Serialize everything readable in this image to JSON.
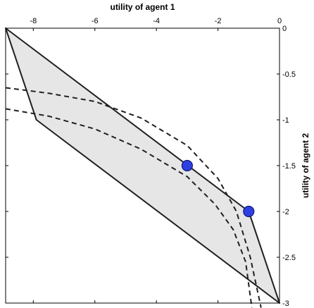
{
  "chart_data": {
    "type": "line",
    "title": "",
    "xlabel": "utility of agent 1",
    "ylabel": "utility of agent 2",
    "x_axis_position": "top",
    "y_axis_position": "right",
    "xlim": [
      -8.9,
      0
    ],
    "ylim": [
      -3,
      0
    ],
    "x_ticks": [
      -8,
      -6,
      -4,
      -2,
      0
    ],
    "y_ticks": [
      0,
      -0.5,
      -1,
      -1.5,
      -2,
      -2.5,
      -3
    ],
    "x_tick_labels": [
      "-8",
      "-6",
      "-4",
      "-2",
      "0"
    ],
    "y_tick_labels": [
      "0",
      "-0.5",
      "-1",
      "-1.5",
      "-2",
      "-2.5",
      "-3"
    ],
    "grid": false,
    "colors": {
      "region_fill": "#e6e6e6",
      "boundary": "#202020",
      "curve": "#202020",
      "point_fill": "#2f3fe0",
      "point_stroke": "#101a80"
    },
    "region": {
      "vertices": [
        [
          -8.9,
          0
        ],
        [
          -1.0,
          -2.0
        ],
        [
          0,
          -3.0
        ],
        [
          -7.9,
          -1.0
        ]
      ]
    },
    "curves": [
      {
        "style": "dashed",
        "points": [
          [
            -8.9,
            -0.65
          ],
          [
            -7.5,
            -0.71
          ],
          [
            -6.0,
            -0.8
          ],
          [
            -4.5,
            -0.98
          ],
          [
            -3.0,
            -1.28
          ],
          [
            -2.0,
            -1.64
          ],
          [
            -1.4,
            -2.0
          ],
          [
            -0.95,
            -2.5
          ],
          [
            -0.6,
            -3.05
          ]
        ]
      },
      {
        "style": "dashed",
        "points": [
          [
            -8.9,
            -0.88
          ],
          [
            -7.5,
            -0.96
          ],
          [
            -6.0,
            -1.1
          ],
          [
            -4.5,
            -1.32
          ],
          [
            -3.0,
            -1.62
          ],
          [
            -2.1,
            -1.92
          ],
          [
            -1.5,
            -2.2
          ],
          [
            -1.1,
            -2.55
          ],
          [
            -0.9,
            -3.05
          ]
        ]
      }
    ],
    "points": [
      {
        "x": -3.0,
        "y": -1.5
      },
      {
        "x": -1.0,
        "y": -2.0
      }
    ]
  }
}
